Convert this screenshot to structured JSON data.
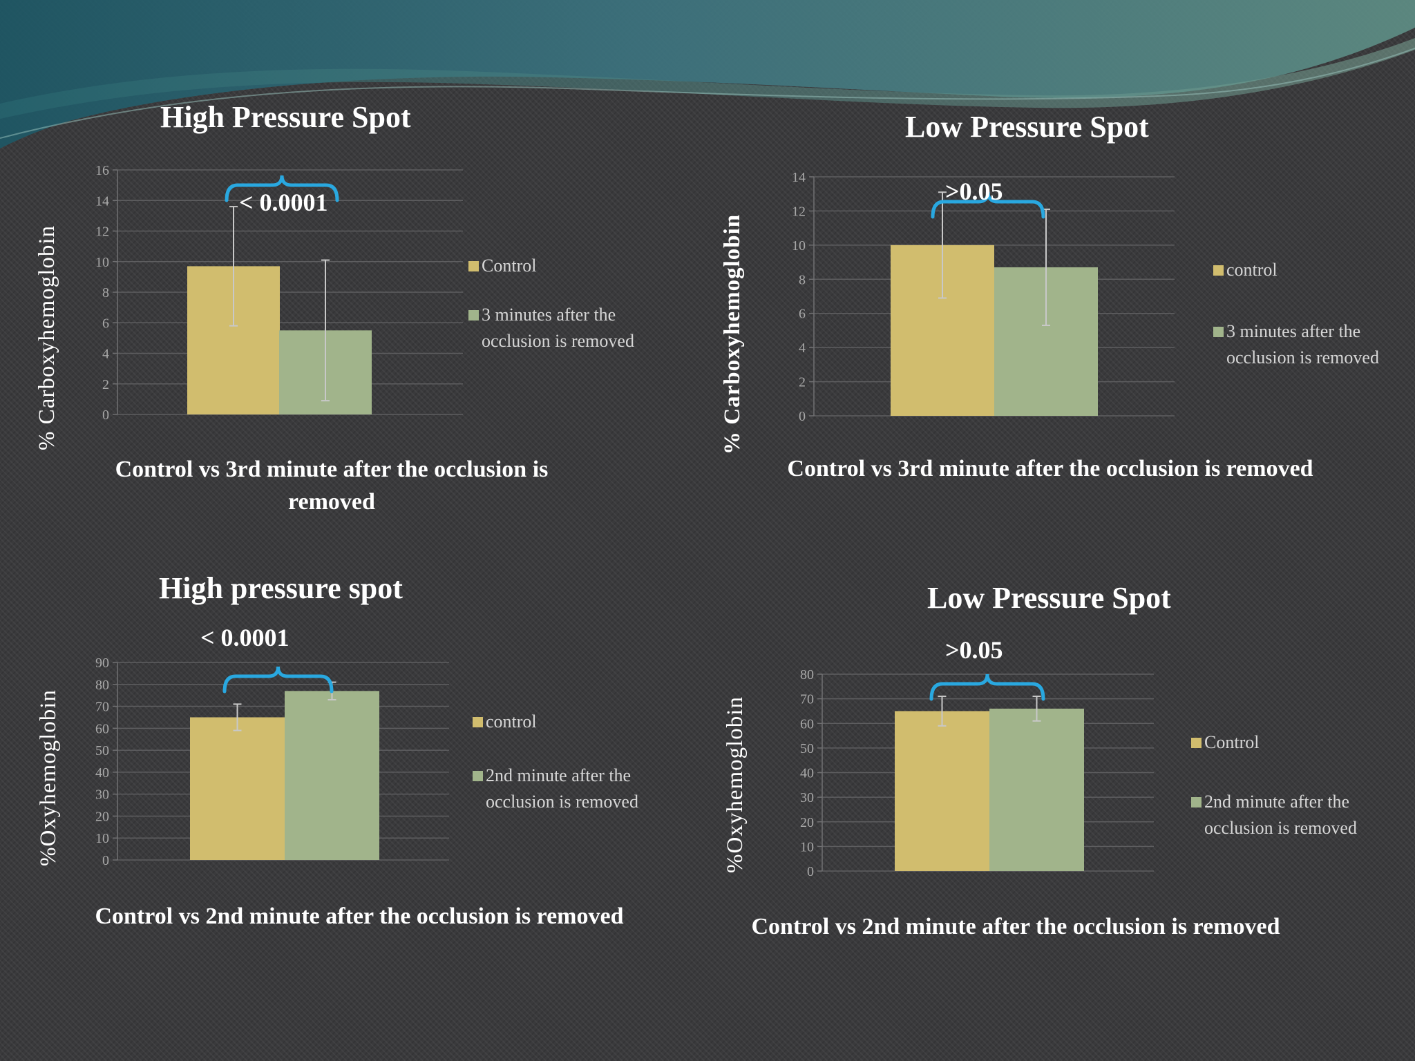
{
  "colors": {
    "control_bar": "#d1bd6e",
    "after_bar": "#a1b48b",
    "bracket": "#29a8e0",
    "error_bar": "#c8c8c8",
    "gridline": "#5e5e60",
    "axis": "#707072",
    "background": "#3a3a3c"
  },
  "chart_data": [
    {
      "type": "bar",
      "title": "High Pressure Spot",
      "ylabel": "% Carboxyhemoglobin",
      "xlabel": "Control vs 3rd minute after the occlusion is removed",
      "ylim": [
        0,
        16
      ],
      "yticks": [
        "0",
        "2",
        "4",
        "6",
        "8",
        "10",
        "12",
        "14",
        "16"
      ],
      "series": [
        {
          "name": "Control",
          "value": 9.7,
          "error": 3.9
        },
        {
          "name": "3 minutes after the occlusion is removed",
          "value": 5.5,
          "error": 4.6
        }
      ],
      "annotation": "< 0.0001",
      "legend_position": "right"
    },
    {
      "type": "bar",
      "title": "Low Pressure Spot",
      "ylabel": "% Carboxyhemoglobin",
      "xlabel": "Control vs 3rd minute after the occlusion is removed",
      "ylim": [
        0,
        14
      ],
      "yticks": [
        "0",
        "2",
        "4",
        "6",
        "8",
        "10",
        "12",
        "14"
      ],
      "series": [
        {
          "name": "control",
          "value": 10.0,
          "error": 3.1
        },
        {
          "name": "3 minutes after the occlusion is removed",
          "value": 8.7,
          "error": 3.4
        }
      ],
      "annotation": ">0.05",
      "legend_position": "right"
    },
    {
      "type": "bar",
      "title": "High pressure spot",
      "ylabel": "%Oxyhemoglobin",
      "xlabel": "Control vs 2nd minute after the occlusion is removed",
      "ylim": [
        0,
        90
      ],
      "yticks": [
        "0",
        "10",
        "20",
        "30",
        "40",
        "50",
        "60",
        "70",
        "80",
        "90"
      ],
      "series": [
        {
          "name": "control",
          "value": 65,
          "error": 6
        },
        {
          "name": "2nd minute after the occlusion is removed",
          "value": 77,
          "error": 4
        }
      ],
      "annotation": "< 0.0001",
      "legend_position": "right"
    },
    {
      "type": "bar",
      "title": "Low Pressure Spot",
      "ylabel": "%Oxyhemoglobin",
      "xlabel": "Control vs 2nd minute after the occlusion is removed",
      "ylim": [
        0,
        80
      ],
      "yticks": [
        "0",
        "10",
        "20",
        "30",
        "40",
        "50",
        "60",
        "70",
        "80"
      ],
      "series": [
        {
          "name": "Control",
          "value": 65,
          "error": 6
        },
        {
          "name": "2nd minute after the occlusion is removed",
          "value": 66,
          "error": 5
        }
      ],
      "annotation": ">0.05",
      "legend_position": "right"
    }
  ]
}
